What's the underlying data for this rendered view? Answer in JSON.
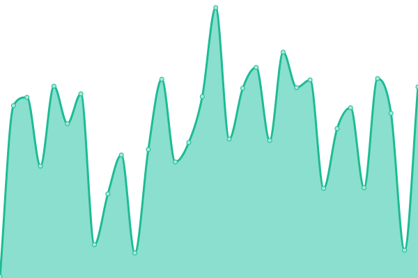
{
  "chart_data": {
    "type": "area",
    "x": [
      0,
      1,
      2,
      3,
      4,
      5,
      6,
      7,
      8,
      9,
      10,
      11,
      12,
      13,
      14,
      15,
      16,
      17,
      18,
      19,
      20,
      21,
      22,
      23,
      24,
      25,
      26,
      27,
      28,
      29,
      30,
      31
    ],
    "values": [
      2,
      248,
      260,
      161,
      276,
      222,
      265,
      48,
      121,
      177,
      36,
      185,
      286,
      167,
      195,
      261,
      389,
      200,
      273,
      303,
      198,
      325,
      274,
      285,
      129,
      215,
      245,
      130,
      287,
      237,
      40,
      275
    ],
    "ylim": [
      0,
      400
    ],
    "grid": false,
    "axes": false,
    "colors": {
      "line": "#1dbb94",
      "fill": "#8adfcf",
      "point_fill": "#a6e8da"
    }
  }
}
